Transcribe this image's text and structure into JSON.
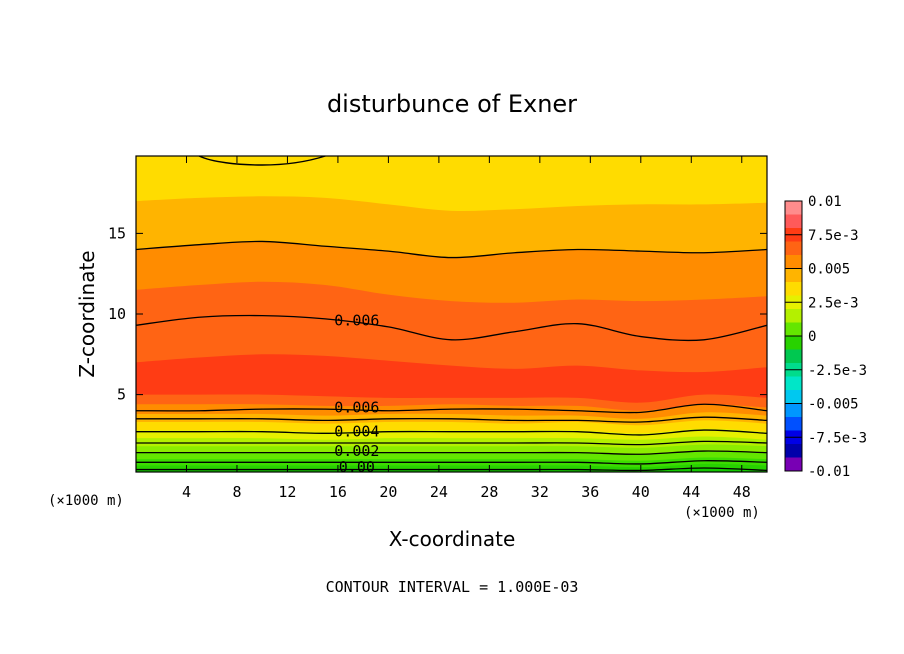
{
  "chart_data": {
    "type": "contour",
    "title": "disturbunce of Exner",
    "xlabel": "X-coordinate",
    "ylabel": "Z-coordinate",
    "x_unit": "(×1000 m)",
    "y_unit": "(×1000 m)",
    "footer": "CONTOUR INTERVAL = 1.000E-03",
    "xlim": [
      0,
      50
    ],
    "ylim": [
      0.2,
      19.8
    ],
    "x_ticks": [
      4,
      8,
      12,
      16,
      20,
      24,
      28,
      32,
      36,
      40,
      44,
      48
    ],
    "y_ticks": [
      5,
      10,
      15
    ],
    "contour_interval": 0.001,
    "contour_labels": [
      {
        "text": "0.006",
        "x": 17.5,
        "y": 9.6
      },
      {
        "text": "0.006",
        "x": 17.5,
        "y": 4.2
      },
      {
        "text": "0.004",
        "x": 17.5,
        "y": 2.7
      },
      {
        "text": "0.002",
        "x": 17.5,
        "y": 1.5
      },
      {
        "text": "0.00",
        "x": 17.5,
        "y": 0.5
      }
    ],
    "colorbar": {
      "ticks": [
        "0.01",
        "7.5e-3",
        "0.005",
        "2.5e-3",
        "0",
        "-2.5e-3",
        "-0.005",
        "-7.5e-3",
        "-0.01"
      ],
      "colors": [
        "#ff8c8c",
        "#ff5a5a",
        "#ff3c14",
        "#ff6414",
        "#ff8c00",
        "#ffb400",
        "#ffdc00",
        "#e6f000",
        "#b4f000",
        "#64e600",
        "#28d200",
        "#00c850",
        "#00dc8c",
        "#00e6c8",
        "#00c8f0",
        "#0096ff",
        "#0050ff",
        "#0000e6",
        "#0000aa",
        "#7800b4"
      ]
    },
    "bands": [
      {
        "value": 0.0045,
        "color": "#ffdc00",
        "z": [
          19.8,
          19.8,
          19.8,
          19.8,
          19.8,
          19.8,
          19.8,
          19.8,
          19.8,
          19.8,
          19.8
        ]
      },
      {
        "value": 0.005,
        "color": "#ffb400",
        "z": [
          17.0,
          17.2,
          17.3,
          17.2,
          16.8,
          16.4,
          16.5,
          16.7,
          16.8,
          16.8,
          16.9
        ]
      },
      {
        "value": 0.0055,
        "color": "#ff8c00",
        "z": [
          14.0,
          14.3,
          14.5,
          14.2,
          13.9,
          13.5,
          13.8,
          14.0,
          13.9,
          13.8,
          14.0
        ]
      },
      {
        "value": 0.006,
        "color": "#ff6414",
        "z": [
          11.5,
          11.8,
          12.0,
          11.8,
          11.2,
          10.8,
          10.7,
          10.9,
          10.8,
          10.9,
          11.1
        ]
      },
      {
        "value": 0.0065,
        "color": "#ff3c14",
        "z": [
          7.0,
          7.3,
          7.5,
          7.4,
          7.1,
          6.8,
          6.6,
          6.8,
          6.5,
          6.4,
          6.7
        ]
      },
      {
        "value": 0.006,
        "color": "#ff6414",
        "z": [
          5.0,
          5.0,
          5.0,
          4.9,
          4.8,
          4.8,
          4.8,
          4.8,
          4.5,
          5.0,
          4.8
        ]
      },
      {
        "value": 0.0055,
        "color": "#ff8c00",
        "z": [
          4.4,
          4.4,
          4.4,
          4.3,
          4.3,
          4.4,
          4.3,
          4.3,
          4.0,
          4.4,
          4.2
        ]
      },
      {
        "value": 0.005,
        "color": "#ffb400",
        "z": [
          3.8,
          3.8,
          3.8,
          3.7,
          3.8,
          3.8,
          3.7,
          3.7,
          3.5,
          3.9,
          3.7
        ]
      },
      {
        "value": 0.0045,
        "color": "#ffdc00",
        "z": [
          3.3,
          3.3,
          3.3,
          3.2,
          3.3,
          3.3,
          3.2,
          3.3,
          3.1,
          3.4,
          3.2
        ]
      },
      {
        "value": 0.004,
        "color": "#e6f000",
        "z": [
          2.8,
          2.8,
          2.8,
          2.7,
          2.8,
          2.8,
          2.8,
          2.8,
          2.6,
          2.9,
          2.7
        ]
      },
      {
        "value": 0.0035,
        "color": "#b4f000",
        "z": [
          2.3,
          2.3,
          2.3,
          2.2,
          2.3,
          2.3,
          2.3,
          2.3,
          2.2,
          2.4,
          2.2
        ]
      },
      {
        "value": 0.003,
        "color": "#8cec00",
        "z": [
          1.8,
          1.8,
          1.8,
          1.8,
          1.8,
          1.8,
          1.8,
          1.8,
          1.7,
          1.9,
          1.8
        ]
      },
      {
        "value": 0.0025,
        "color": "#64e600",
        "z": [
          1.4,
          1.4,
          1.4,
          1.4,
          1.4,
          1.4,
          1.4,
          1.4,
          1.3,
          1.5,
          1.4
        ]
      },
      {
        "value": 0.002,
        "color": "#3cdc00",
        "z": [
          1.0,
          1.0,
          1.0,
          1.0,
          1.0,
          1.0,
          1.0,
          1.0,
          0.9,
          1.1,
          1.0
        ]
      },
      {
        "value": 0.0015,
        "color": "#28d200",
        "z": [
          0.6,
          0.6,
          0.6,
          0.6,
          0.6,
          0.6,
          0.6,
          0.6,
          0.5,
          0.7,
          0.6
        ]
      },
      {
        "value": 0.001,
        "color": "#14c800",
        "z": [
          0.35,
          0.35,
          0.35,
          0.35,
          0.35,
          0.35,
          0.35,
          0.35,
          0.3,
          0.45,
          0.3
        ]
      }
    ],
    "contours": [
      {
        "value": 0.005,
        "z": [
          14.0,
          14.3,
          14.5,
          14.2,
          13.9,
          13.5,
          13.8,
          14.0,
          13.9,
          13.8,
          14.0
        ]
      },
      {
        "value": 0.006,
        "z": [
          9.3,
          9.8,
          9.9,
          9.7,
          9.2,
          8.4,
          8.9,
          9.4,
          8.6,
          8.4,
          9.3
        ]
      },
      {
        "value": 0.006,
        "z": [
          4.0,
          4.0,
          4.1,
          4.1,
          4.0,
          4.1,
          4.1,
          4.0,
          3.9,
          4.4,
          4.0
        ]
      },
      {
        "value": 0.005,
        "z": [
          3.5,
          3.5,
          3.5,
          3.4,
          3.5,
          3.5,
          3.4,
          3.4,
          3.3,
          3.6,
          3.4
        ]
      },
      {
        "value": 0.004,
        "z": [
          2.7,
          2.7,
          2.7,
          2.6,
          2.7,
          2.7,
          2.7,
          2.7,
          2.5,
          2.8,
          2.6
        ]
      },
      {
        "value": 0.003,
        "z": [
          2.0,
          2.0,
          2.0,
          2.0,
          2.0,
          2.0,
          2.0,
          2.0,
          1.9,
          2.1,
          2.0
        ]
      },
      {
        "value": 0.002,
        "z": [
          1.4,
          1.4,
          1.4,
          1.4,
          1.4,
          1.4,
          1.4,
          1.4,
          1.3,
          1.5,
          1.4
        ]
      },
      {
        "value": 0.001,
        "z": [
          0.8,
          0.8,
          0.8,
          0.8,
          0.8,
          0.8,
          0.8,
          0.8,
          0.7,
          0.9,
          0.8
        ]
      },
      {
        "value": 0.0,
        "z": [
          0.35,
          0.35,
          0.35,
          0.35,
          0.35,
          0.35,
          0.35,
          0.35,
          0.3,
          0.45,
          0.3
        ]
      }
    ],
    "x_nodes": [
      0,
      5,
      10,
      15,
      20,
      25,
      30,
      35,
      40,
      45,
      50
    ]
  }
}
